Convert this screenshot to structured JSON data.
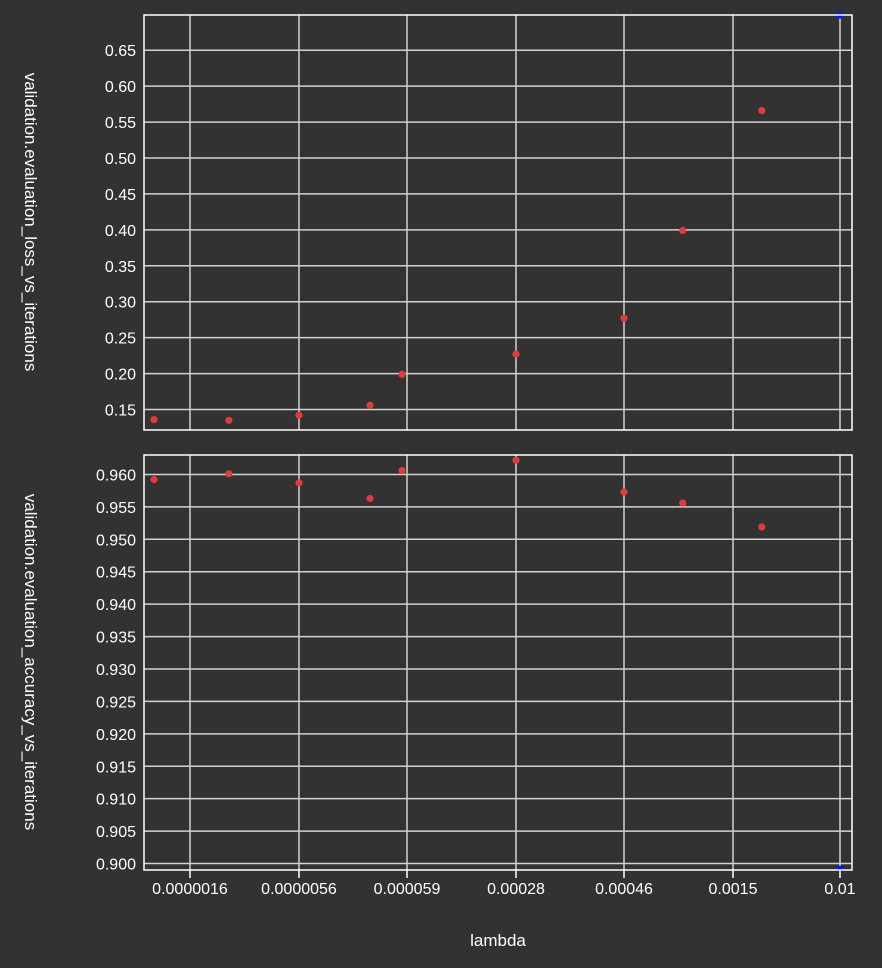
{
  "chart_data": [
    {
      "type": "scatter",
      "panel": "top",
      "ylabel": "validation.evaluation_loss_vs_iterations",
      "yticks": [
        0.15,
        0.2,
        0.25,
        0.3,
        0.35,
        0.4,
        0.45,
        0.5,
        0.55,
        0.6,
        0.65
      ],
      "ytick_labels": [
        "0.15",
        "0.20",
        "0.25",
        "0.30",
        "0.35",
        "0.40",
        "0.45",
        "0.50",
        "0.55",
        "0.60",
        "0.65"
      ],
      "ylim": [
        0.1215,
        0.699
      ],
      "grid": true,
      "point_color": "#e03c3c",
      "highlight_color": "#0a14ff",
      "series": [
        {
          "points": [
            {
              "x": 7.6e-07,
              "y": 0.136
            },
            {
              "x": 2.5e-06,
              "y": 0.135
            },
            {
              "x": 5.6e-06,
              "y": 0.142
            },
            {
              "x": 1.5e-05,
              "y": 0.156
            },
            {
              "x": 4.9e-05,
              "y": 0.199
            },
            {
              "x": 0.00028,
              "y": 0.227
            },
            {
              "x": 0.00046,
              "y": 0.277
            },
            {
              "x": 0.00087,
              "y": 0.399
            },
            {
              "x": 0.0025,
              "y": 0.566
            }
          ]
        }
      ],
      "highlight_points": [
        {
          "x": 0.01,
          "y": 0.699
        }
      ]
    },
    {
      "type": "scatter",
      "panel": "bottom",
      "ylabel": "validation.evaluation_accuracy_vs_iterations",
      "xlabel": "lambda",
      "xticks": [
        1.6e-06,
        5.6e-06,
        5.9e-05,
        0.00028,
        0.00046,
        0.0015,
        0.01
      ],
      "xtick_labels": [
        "0.0000016",
        "0.0000056",
        "0.000059",
        "0.00028",
        "0.00046",
        "0.0015",
        "0.01"
      ],
      "yticks": [
        0.9,
        0.905,
        0.91,
        0.915,
        0.92,
        0.925,
        0.93,
        0.935,
        0.94,
        0.945,
        0.95,
        0.955,
        0.96
      ],
      "ytick_labels": [
        "0.900",
        "0.905",
        "0.910",
        "0.915",
        "0.920",
        "0.925",
        "0.930",
        "0.935",
        "0.940",
        "0.945",
        "0.950",
        "0.955",
        "0.960"
      ],
      "ylim": [
        0.899,
        0.963
      ],
      "grid": true,
      "point_color": "#e03c3c",
      "highlight_color": "#0a14ff",
      "series": [
        {
          "points": [
            {
              "x": 7.6e-07,
              "y": 0.9592
            },
            {
              "x": 2.5e-06,
              "y": 0.9601
            },
            {
              "x": 5.6e-06,
              "y": 0.9587
            },
            {
              "x": 1.5e-05,
              "y": 0.9563
            },
            {
              "x": 4.9e-05,
              "y": 0.9606
            },
            {
              "x": 0.00028,
              "y": 0.9622
            },
            {
              "x": 0.00046,
              "y": 0.9573
            },
            {
              "x": 0.00087,
              "y": 0.9556
            },
            {
              "x": 0.0025,
              "y": 0.9519
            }
          ]
        }
      ],
      "highlight_points": [
        {
          "x": 0.01,
          "y": 0.8991
        }
      ]
    }
  ]
}
